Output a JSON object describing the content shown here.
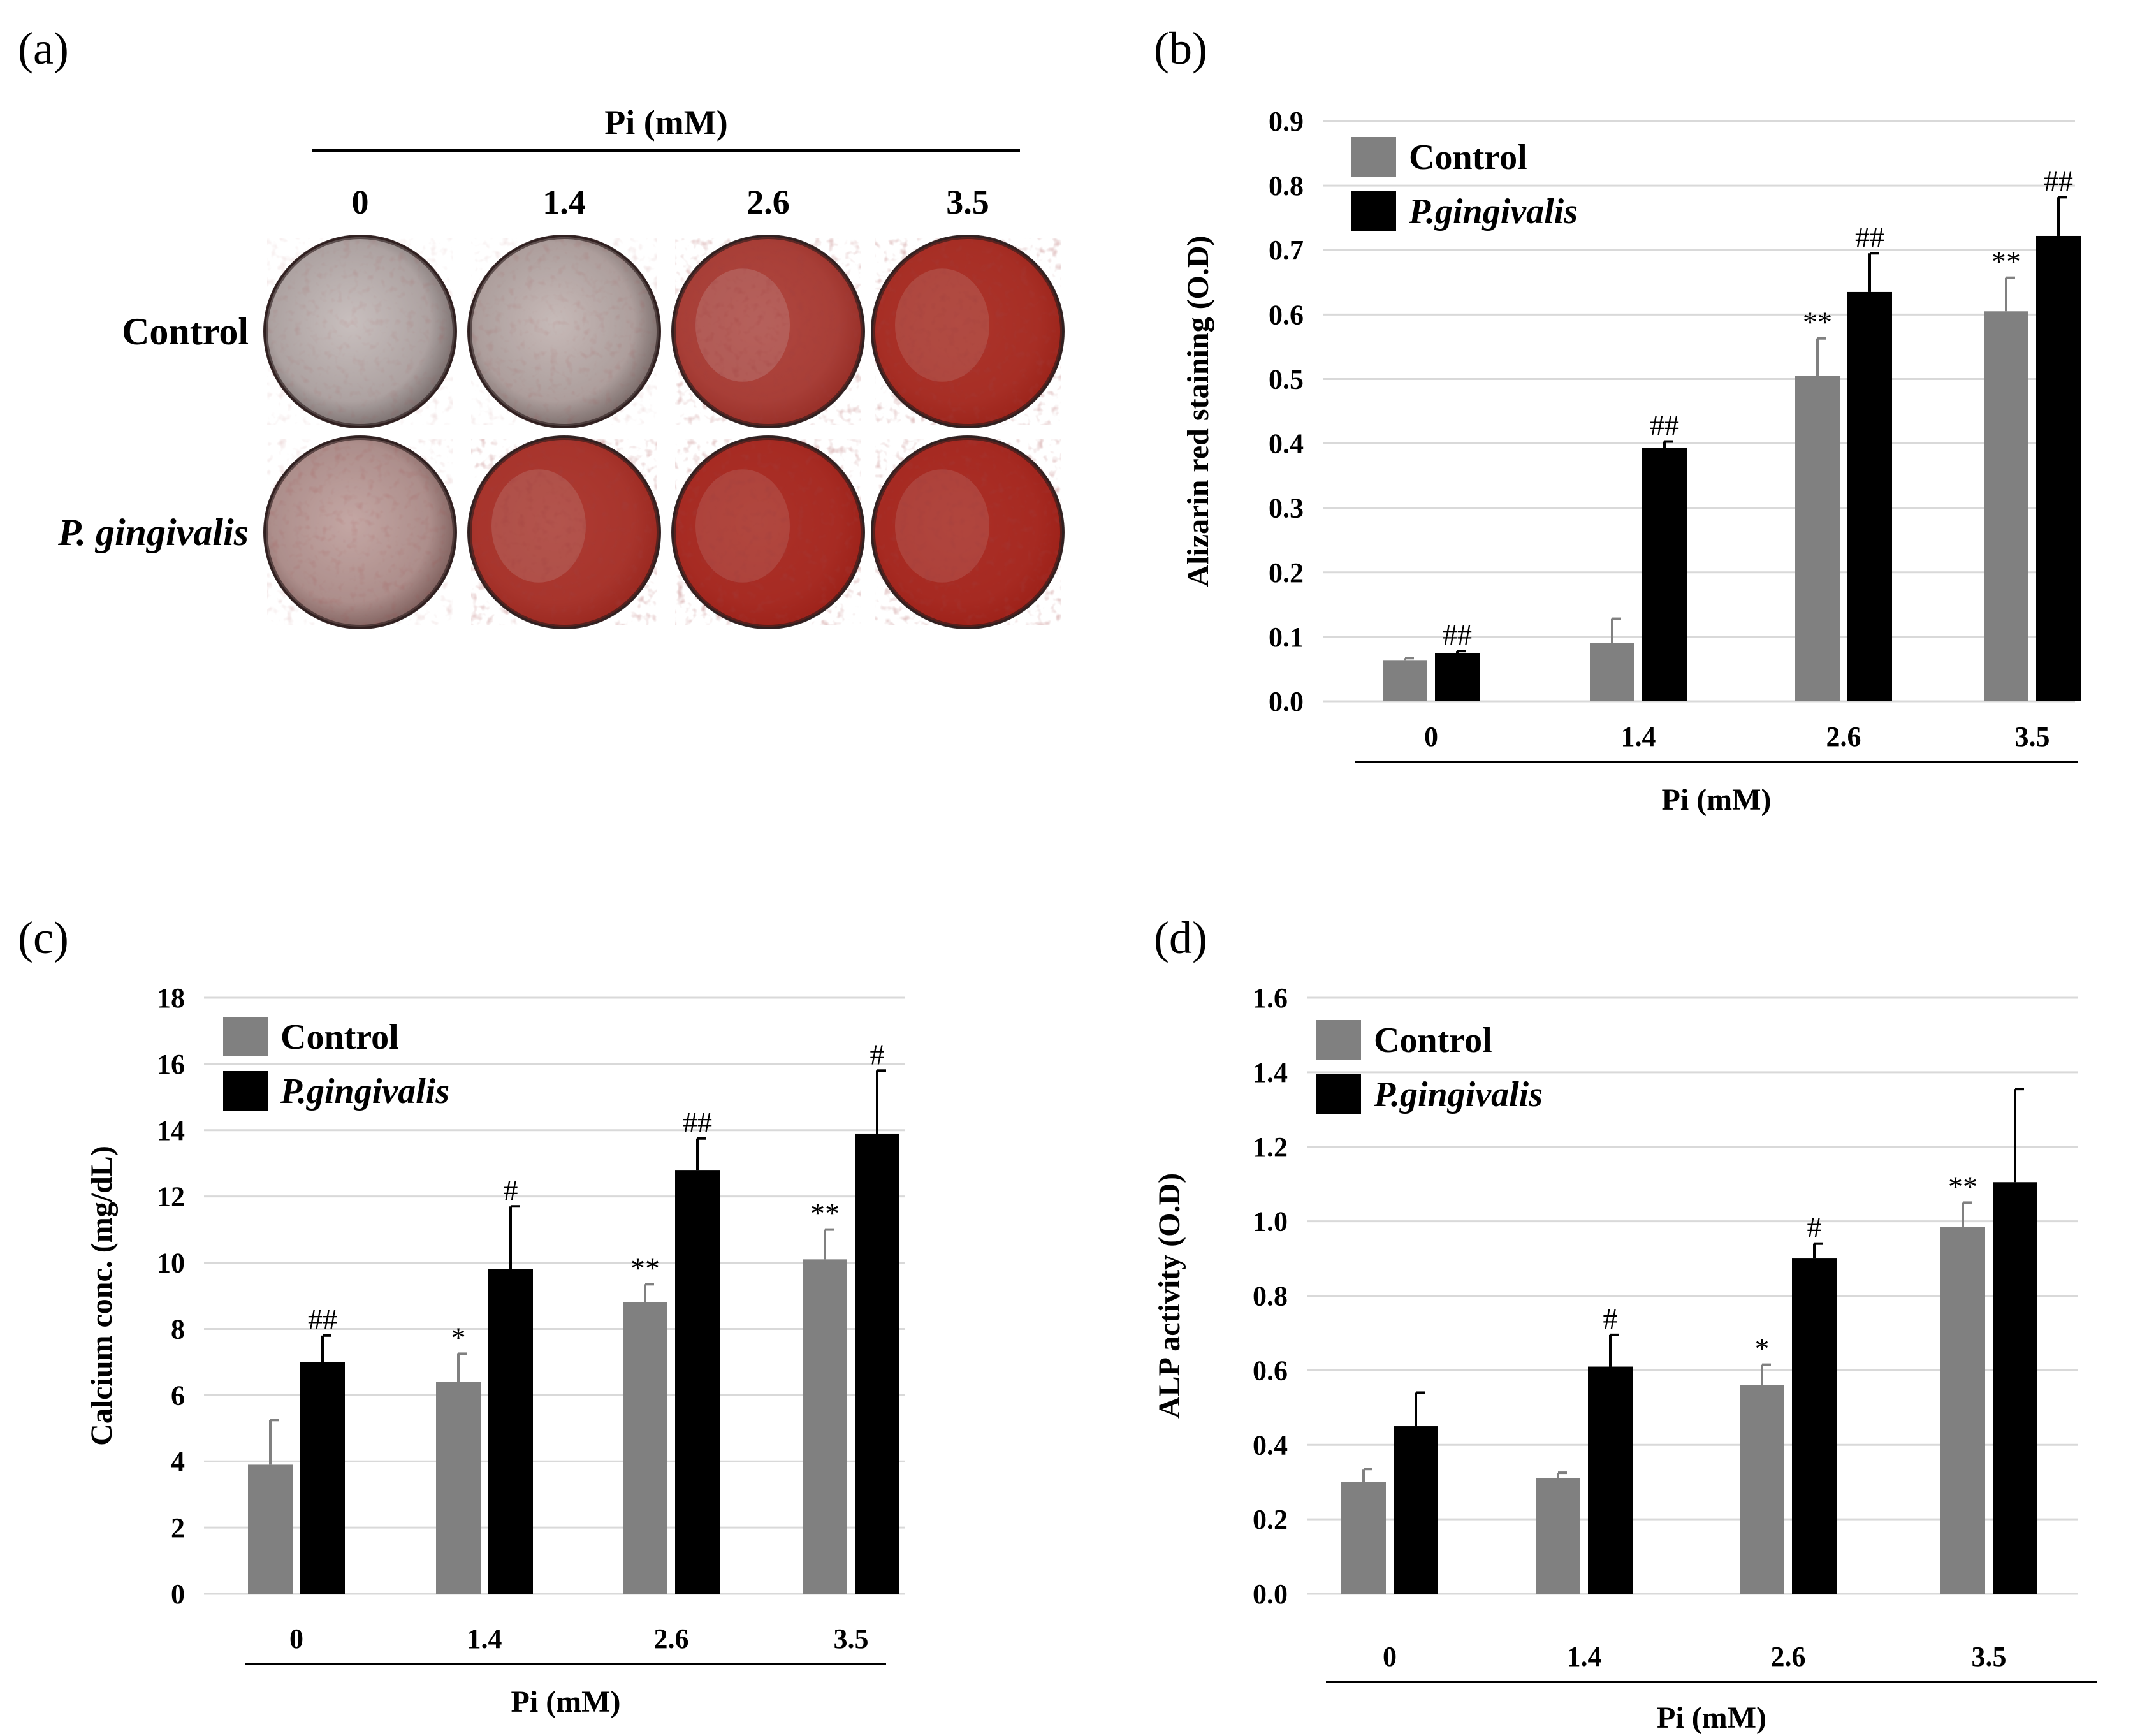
{
  "panels": {
    "a": "(a)",
    "b": "(b)",
    "c": "(c)",
    "d": "(d)"
  },
  "colors": {
    "control": "#808080",
    "treated": "#000000"
  },
  "plate": {
    "header": "Pi (mM)",
    "columns": [
      "0",
      "1.4",
      "2.6",
      "3.5"
    ],
    "rows": [
      "Control",
      "P. gingivalis"
    ],
    "stain_intensity": [
      [
        0.02,
        0.06,
        0.78,
        0.9
      ],
      [
        0.18,
        0.85,
        0.92,
        0.93
      ]
    ]
  },
  "chart_data": [
    {
      "id": "b",
      "type": "bar",
      "title": "",
      "xlabel": "Pi (mM)",
      "ylabel": "Alizarin red staining (O.D)",
      "categories": [
        "0",
        "1.4",
        "2.6",
        "3.5"
      ],
      "ylim": [
        0,
        0.9
      ],
      "yticks": [
        "0.0",
        "0.1",
        "0.2",
        "0.3",
        "0.4",
        "0.5",
        "0.6",
        "0.7",
        "0.8",
        "0.9"
      ],
      "legend": [
        "Control",
        "P.gingivalis"
      ],
      "legend_position": "top-left",
      "series": [
        {
          "name": "Control",
          "values": [
            0.063,
            0.09,
            0.505,
            0.605
          ],
          "errors": [
            0.004,
            0.038,
            0.058,
            0.052
          ],
          "annotations": [
            "",
            "",
            "**",
            "**"
          ]
        },
        {
          "name": "P.gingivalis",
          "values": [
            0.075,
            0.393,
            0.635,
            0.722
          ],
          "errors": [
            0.003,
            0.01,
            0.06,
            0.06
          ],
          "annotations": [
            "##",
            "##",
            "##",
            "##"
          ]
        }
      ]
    },
    {
      "id": "c",
      "type": "bar",
      "title": "",
      "xlabel": "Pi (mM)",
      "ylabel": "Calcium conc. (mg/dL)",
      "categories": [
        "0",
        "1.4",
        "2.6",
        "3.5"
      ],
      "ylim": [
        0,
        18
      ],
      "yticks": [
        "0",
        "2",
        "4",
        "6",
        "8",
        "10",
        "12",
        "14",
        "16",
        "18"
      ],
      "legend": [
        "Control",
        "P.gingivalis"
      ],
      "legend_position": "top-left",
      "series": [
        {
          "name": "Control",
          "values": [
            3.9,
            6.4,
            8.8,
            10.1
          ],
          "errors": [
            1.35,
            0.85,
            0.55,
            0.9
          ],
          "annotations": [
            "",
            "*",
            "**",
            "**"
          ]
        },
        {
          "name": "P.gingivalis",
          "values": [
            7.0,
            9.8,
            12.8,
            13.9
          ],
          "errors": [
            0.8,
            1.9,
            0.95,
            1.9
          ],
          "annotations": [
            "##",
            "#",
            "##",
            "#"
          ]
        }
      ]
    },
    {
      "id": "d",
      "type": "bar",
      "title": "",
      "xlabel": "Pi (mM)",
      "ylabel": "ALP activity (O.D)",
      "categories": [
        "0",
        "1.4",
        "2.6",
        "3.5"
      ],
      "ylim": [
        0,
        1.6
      ],
      "yticks": [
        "0.0",
        "0.2",
        "0.4",
        "0.6",
        "0.8",
        "1.0",
        "1.2",
        "1.4",
        "1.6"
      ],
      "legend": [
        "Control",
        "P.gingivalis"
      ],
      "legend_position": "top-left",
      "series": [
        {
          "name": "Control",
          "values": [
            0.3,
            0.31,
            0.56,
            0.985
          ],
          "errors": [
            0.035,
            0.015,
            0.055,
            0.065
          ],
          "annotations": [
            "",
            "",
            "*",
            "**"
          ]
        },
        {
          "name": "P.gingivalis",
          "values": [
            0.45,
            0.61,
            0.9,
            1.105
          ],
          "errors": [
            0.09,
            0.085,
            0.04,
            0.25
          ],
          "annotations": [
            "",
            "#",
            "#",
            ""
          ]
        }
      ]
    }
  ]
}
